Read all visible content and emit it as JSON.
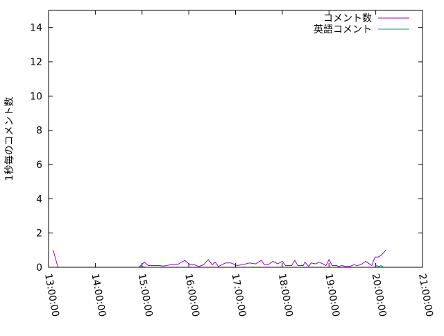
{
  "chart_data": {
    "type": "line",
    "title": "",
    "xlabel": "",
    "ylabel": "1秒毎のコメント数",
    "xlim": [
      "13:00:00",
      "21:00:00"
    ],
    "ylim": [
      0,
      15
    ],
    "x_ticks": [
      "13:00:00",
      "14:00:00",
      "15:00:00",
      "16:00:00",
      "17:00:00",
      "18:00:00",
      "19:00:00",
      "20:00:00",
      "21:00:00"
    ],
    "y_ticks": [
      "0",
      "2",
      "4",
      "6",
      "8",
      "10",
      "12",
      "14"
    ],
    "grid": false,
    "legend_position": "top-right",
    "series": [
      {
        "name": "コメント数",
        "color": "#9400d3",
        "x": [
          "13:06",
          "13:12",
          "14:56",
          "15:03",
          "15:08",
          "15:22",
          "15:28",
          "15:37",
          "15:45",
          "15:55",
          "16:01",
          "16:07",
          "16:13",
          "16:19",
          "16:25",
          "16:30",
          "16:34",
          "16:38",
          "16:47",
          "16:54",
          "17:02",
          "17:09",
          "17:18",
          "17:26",
          "17:33",
          "17:37",
          "17:42",
          "17:48",
          "17:54",
          "18:00",
          "18:04",
          "18:12",
          "18:16",
          "18:20",
          "18:27",
          "18:29",
          "18:34",
          "18:37",
          "18:43",
          "18:47",
          "18:52",
          "18:56",
          "19:00",
          "19:04",
          "19:10",
          "19:12",
          "19:17",
          "19:21",
          "19:27",
          "19:32",
          "19:36",
          "19:41",
          "19:47",
          "19:55",
          "19:59",
          "20:03",
          "20:07",
          "20:13"
        ],
        "y": [
          1.0,
          0,
          0,
          0.3,
          0.1,
          0.1,
          0.07,
          0.15,
          0.15,
          0.4,
          0.15,
          0.15,
          0.05,
          0.15,
          0.45,
          0.15,
          0.3,
          0.05,
          0.25,
          0.25,
          0.1,
          0.15,
          0.25,
          0.2,
          0.4,
          0.15,
          0.15,
          0.35,
          0.2,
          0.35,
          0.1,
          0.1,
          0.4,
          0.1,
          0.1,
          0.3,
          0.05,
          0.25,
          0.2,
          0.3,
          0.2,
          0.1,
          0.45,
          0.1,
          0.1,
          0.05,
          0.1,
          0.05,
          0.05,
          0.15,
          0.1,
          0.15,
          0.35,
          0.1,
          0.6,
          0.6,
          0.7,
          1.0
        ]
      },
      {
        "name": "英語コメント",
        "color": "#009e73",
        "x": [
          "14:56",
          "15:00",
          "15:05",
          "19:55",
          "19:58",
          "20:01",
          "20:04",
          "20:07",
          "20:10"
        ],
        "y": [
          0,
          0.05,
          0,
          0,
          0,
          0.1,
          0.05,
          0.1,
          0
        ]
      }
    ]
  }
}
